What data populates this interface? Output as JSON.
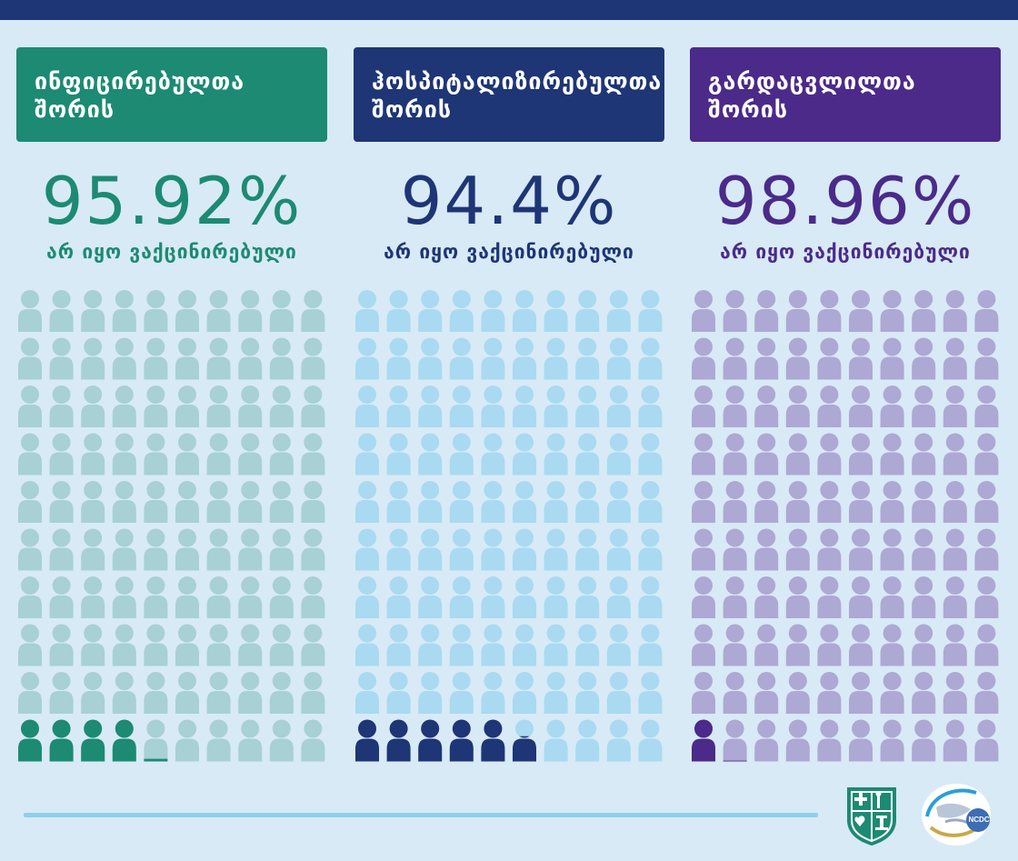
{
  "panels": [
    {
      "title_line1": "ინფიცირებულთა",
      "title_line2": "შორის",
      "percent_label": "95.92%",
      "subtitle": "არ იყო ვაქცინირებული",
      "unvaccinated_percent": 95.92,
      "colors": {
        "header": "#1d8a73",
        "percent": "#1d8a73",
        "icon_light": "#a7d1d4",
        "icon_dark": "#1d8a73"
      }
    },
    {
      "title_line1": "ჰოსპიტალიზირებულთა",
      "title_line2": "შორის",
      "percent_label": "94.4%",
      "subtitle": "არ იყო ვაქცინირებული",
      "unvaccinated_percent": 94.4,
      "colors": {
        "header": "#1e3576",
        "percent": "#1e3576",
        "icon_light": "#a9daf1",
        "icon_dark": "#1e3576"
      }
    },
    {
      "title_line1": "გარდაცვლილთა",
      "title_line2": "შორის",
      "percent_label": "98.96%",
      "subtitle": "არ იყო ვაქცინირებული",
      "unvaccinated_percent": 98.96,
      "colors": {
        "header": "#4b2a8a",
        "percent": "#4b2a8a",
        "icon_light": "#aea8d4",
        "icon_dark": "#4b2a8a"
      }
    }
  ],
  "footer": {
    "ncdc_logo_text": "NCDC",
    "ministry_logo_icon": "ministry-emblem-icon",
    "colors": {
      "line": "#8fd0ec",
      "emblem": "#1d8a73"
    }
  }
}
